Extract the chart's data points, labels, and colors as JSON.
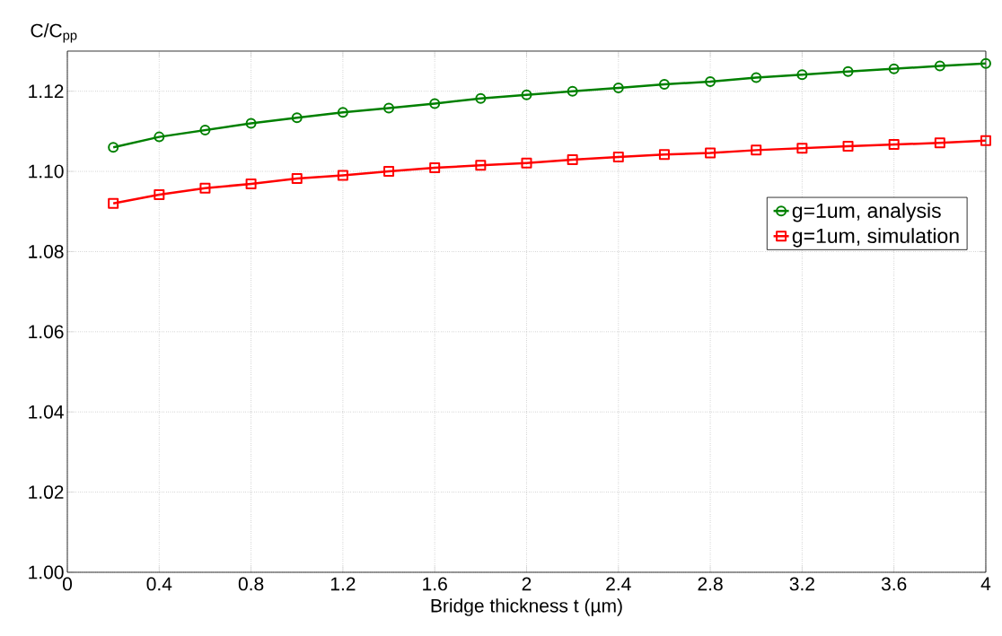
{
  "chart_data": {
    "type": "line",
    "xlabel": "Bridge thickness t (µm)",
    "ylabel": "C/C$_{pp}$",
    "x": [
      0.2,
      0.4,
      0.6,
      0.8,
      1.0,
      1.2,
      1.4,
      1.6,
      1.8,
      2.0,
      2.2,
      2.4,
      2.6,
      2.8,
      3.0,
      3.2,
      3.4,
      3.6,
      3.8,
      4.0
    ],
    "series": [
      {
        "name": "g=1um, analysis",
        "color": "#008000",
        "marker": "circle",
        "values": [
          1.106,
          1.1086,
          1.1103,
          1.112,
          1.1134,
          1.1147,
          1.1158,
          1.1169,
          1.1182,
          1.1191,
          1.12,
          1.1208,
          1.1217,
          1.1224,
          1.1234,
          1.1241,
          1.1249,
          1.1256,
          1.1263,
          1.1269
        ]
      },
      {
        "name": "g=1um, simulation",
        "color": "#ff0000",
        "marker": "square",
        "values": [
          1.092,
          1.0942,
          1.0958,
          1.0969,
          1.0982,
          1.099,
          1.1,
          1.1009,
          1.1015,
          1.1021,
          1.1029,
          1.1036,
          1.1042,
          1.1046,
          1.1053,
          1.1058,
          1.1063,
          1.1067,
          1.1071,
          1.1077
        ]
      }
    ],
    "xlim": [
      0,
      4
    ],
    "ylim": [
      1.0,
      1.13
    ],
    "xticks": [
      0,
      0.4,
      0.8,
      1.2,
      1.6,
      2,
      2.4,
      2.8,
      3.2,
      3.6,
      4
    ],
    "yticks": [
      {
        "value": 1.0,
        "label": "1.00"
      },
      {
        "value": 1.02,
        "label": "1.02"
      },
      {
        "value": 1.04,
        "label": "1.04"
      },
      {
        "value": 1.06,
        "label": "1.06"
      },
      {
        "value": 1.08,
        "label": "1.08"
      },
      {
        "value": 1.1,
        "label": "1.10"
      },
      {
        "value": 1.12,
        "label": "1.12"
      }
    ],
    "grid": true,
    "legend": "right",
    "line_style": "solid"
  }
}
